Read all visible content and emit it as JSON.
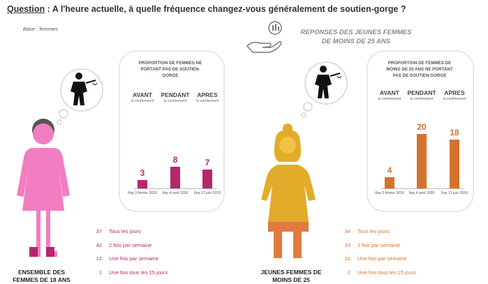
{
  "question": {
    "label": "Question",
    "text": " : A l'heure actuelle, à quelle fréquence changez-vous généralement de soutien-gorge ?"
  },
  "base": "Base : femmes",
  "young_title": "REPONSES DES JEUNES FEMMES DE MOINS DE 25 ANS",
  "colors": {
    "left_accent": "#b5266e",
    "left_figure": "#f17ec0",
    "right_accent": "#d4732c",
    "right_figure": "#e2ac2a",
    "right_skirt": "#e27a3f"
  },
  "chart_data": [
    {
      "type": "bar",
      "title": "PROPORTION DE FEMMES NE PORTANT PAS DE SOUTIEN-GORGE",
      "phases": [
        {
          "label": "AVANT",
          "sub": "le confinement"
        },
        {
          "label": "PENDANT",
          "sub": "le confinement"
        },
        {
          "label": "APRES",
          "sub": "le confinement"
        }
      ],
      "categories": [
        "Ifop 3 février 2020",
        "Ifop 4 avril 2020",
        "Ifop 12 juin 2020"
      ],
      "values": [
        3,
        8,
        7
      ],
      "ylim": [
        0,
        20
      ],
      "grid": false
    },
    {
      "type": "bar",
      "title": "PROPORTION DE FEMMES DE MOINS DE 25 ANS NE PORTANT PAS DE SOUTIEN-GORGE",
      "phases": [
        {
          "label": "AVANT",
          "sub": "le confinement"
        },
        {
          "label": "PENDANT",
          "sub": "le confinement"
        },
        {
          "label": "APRES",
          "sub": "le confinement"
        }
      ],
      "categories": [
        "Ifop 3 février 2020",
        "Ifop 4 avril 2020",
        "Ifop 12 juin 2020"
      ],
      "values": [
        4,
        20,
        18
      ],
      "ylim": [
        0,
        20
      ],
      "grid": false
    },
    {
      "type": "table",
      "rows": [
        {
          "label": "Tous les jours",
          "value": 37
        },
        {
          "label": "2 fois par semaine",
          "value": 42
        },
        {
          "label": "Une fois par semaine",
          "value": 12
        },
        {
          "label": "Une fois tous les 15 jours",
          "value": 1
        }
      ]
    },
    {
      "type": "table",
      "rows": [
        {
          "label": "Tous les jours",
          "value": 34
        },
        {
          "label": "2 fois par semaine",
          "value": 33
        },
        {
          "label": "Une fois par semaine",
          "value": 10
        },
        {
          "label": "Une fois tous les 15 jours",
          "value": 2
        }
      ]
    }
  ],
  "left_population": "ENSEMBLE DES FEMMES DE 18 ANS",
  "right_population": "JEUNES FEMMES DE MOINS DE 25"
}
